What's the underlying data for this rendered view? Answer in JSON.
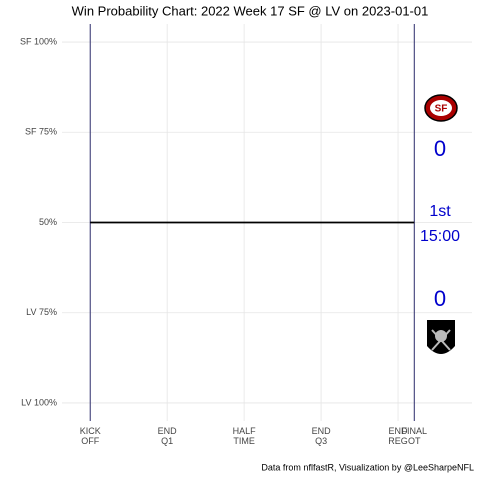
{
  "chart_data": {
    "type": "line",
    "title": "Win Probability Chart: 2022 Week 17 SF @ LV on 2023-01-01",
    "caption": "Data from nflfastR, Visualization by @LeeSharpeNFL",
    "x": [
      0,
      3790
    ],
    "series": [
      {
        "color": "#000000",
        "values": [
          0.5,
          0.5
        ]
      }
    ],
    "xlim": [
      -330,
      4465
    ],
    "ylim": [
      -0.05,
      1.05
    ],
    "xticks": [
      {
        "value": 0,
        "label": "KICK\nOFF"
      },
      {
        "value": 900,
        "label": "END\nQ1"
      },
      {
        "value": 1800,
        "label": "HALF\nTIME"
      },
      {
        "value": 2700,
        "label": "END\nQ3"
      },
      {
        "value": 3600,
        "label": "END\nREG"
      },
      {
        "value": 3790,
        "label": "FINAL\nOT"
      }
    ],
    "yticks": [
      {
        "value": 0,
        "label": "LV 100%"
      },
      {
        "value": 0.25,
        "label": "LV 75%"
      },
      {
        "value": 0.5,
        "label": "50%"
      },
      {
        "value": 0.75,
        "label": "SF 75%"
      },
      {
        "value": 1,
        "label": "SF 100%"
      }
    ],
    "grid": true,
    "score_sf": 0,
    "score_lv": 0,
    "period": "1st",
    "clock": "15:00"
  }
}
